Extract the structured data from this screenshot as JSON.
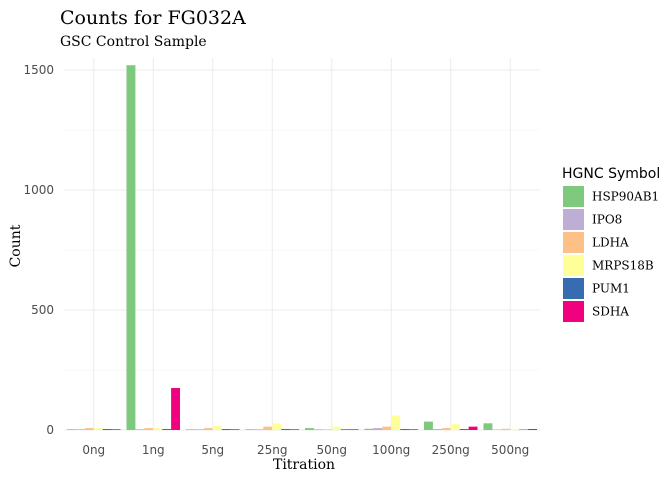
{
  "chart_data": {
    "type": "bar",
    "title": "Counts for FG032A",
    "subtitle": "GSC Control Sample",
    "xlabel": "Titration",
    "ylabel": "Count",
    "categories": [
      "0ng",
      "1ng",
      "5ng",
      "25ng",
      "50ng",
      "100ng",
      "250ng",
      "500ng"
    ],
    "ylim": [
      0,
      1550
    ],
    "yticks": [
      0,
      500,
      1000,
      1500
    ],
    "grid": true,
    "legend": {
      "title": "HGNC Symbol",
      "position": "right"
    },
    "series": [
      {
        "name": "HSP90AB1",
        "color": "#7fc97f",
        "values": [
          3,
          1520,
          3,
          3,
          8,
          5,
          35,
          28
        ]
      },
      {
        "name": "IPO8",
        "color": "#beaed4",
        "values": [
          3,
          3,
          3,
          3,
          3,
          8,
          4,
          2
        ]
      },
      {
        "name": "LDHA",
        "color": "#fdc086",
        "values": [
          8,
          8,
          8,
          14,
          3,
          14,
          8,
          5
        ]
      },
      {
        "name": "MRPS18B",
        "color": "#ffff99",
        "values": [
          8,
          8,
          18,
          28,
          14,
          60,
          24,
          5
        ]
      },
      {
        "name": "PUM1",
        "color": "#386cb0",
        "values": [
          4,
          4,
          4,
          4,
          3,
          4,
          4,
          2
        ]
      },
      {
        "name": "SDHA",
        "color": "#f0027f",
        "values": [
          3,
          175,
          3,
          3,
          3,
          3,
          14,
          4
        ]
      }
    ]
  }
}
